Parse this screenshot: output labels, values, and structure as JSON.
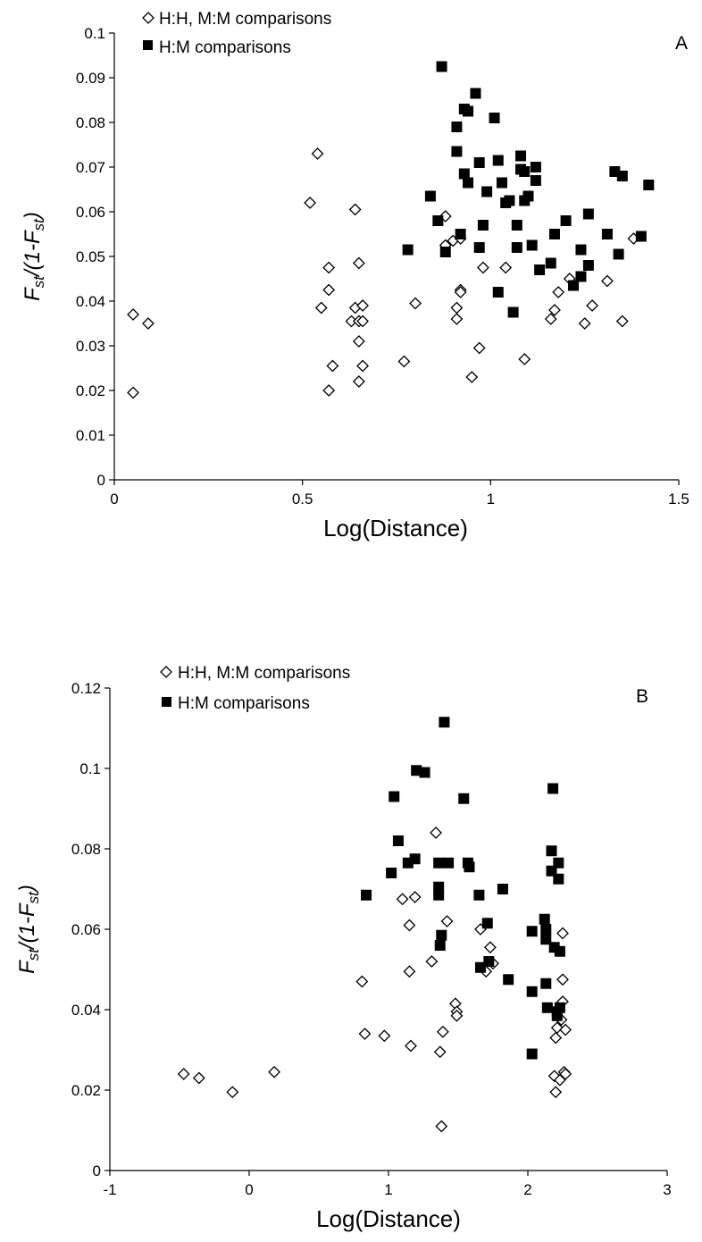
{
  "chart_data": [
    {
      "type": "scatter",
      "panel_label": "A",
      "xlabel": "Log(Distance)",
      "ylabel": "Fst/(1-Fst)",
      "xlim": [
        0,
        1.5
      ],
      "ylim": [
        0,
        0.1
      ],
      "xticks": [
        "0",
        "0.5",
        "1",
        "1.5"
      ],
      "yticks": [
        "0",
        "0.01",
        "0.02",
        "0.03",
        "0.04",
        "0.05",
        "0.06",
        "0.07",
        "0.08",
        "0.09",
        "0.1"
      ],
      "legend_position": "top-left",
      "series": [
        {
          "name": "H:H, M:M comparisons",
          "marker": "open-diamond",
          "points": [
            [
              0.05,
              0.037
            ],
            [
              0.09,
              0.035
            ],
            [
              0.05,
              0.0195
            ],
            [
              0.52,
              0.062
            ],
            [
              0.54,
              0.073
            ],
            [
              0.55,
              0.0385
            ],
            [
              0.57,
              0.0475
            ],
            [
              0.57,
              0.0425
            ],
            [
              0.57,
              0.02
            ],
            [
              0.58,
              0.0255
            ],
            [
              0.63,
              0.0355
            ],
            [
              0.64,
              0.0605
            ],
            [
              0.64,
              0.0385
            ],
            [
              0.65,
              0.0485
            ],
            [
              0.65,
              0.0355
            ],
            [
              0.65,
              0.031
            ],
            [
              0.65,
              0.022
            ],
            [
              0.66,
              0.039
            ],
            [
              0.66,
              0.0355
            ],
            [
              0.66,
              0.0255
            ],
            [
              0.77,
              0.0265
            ],
            [
              0.8,
              0.0395
            ],
            [
              0.88,
              0.059
            ],
            [
              0.88,
              0.0525
            ],
            [
              0.9,
              0.0535
            ],
            [
              0.91,
              0.0385
            ],
            [
              0.91,
              0.036
            ],
            [
              0.92,
              0.0425
            ],
            [
              0.92,
              0.042
            ],
            [
              0.92,
              0.054
            ],
            [
              0.95,
              0.023
            ],
            [
              0.97,
              0.0295
            ],
            [
              0.98,
              0.0475
            ],
            [
              1.04,
              0.0475
            ],
            [
              1.09,
              0.027
            ],
            [
              1.16,
              0.036
            ],
            [
              1.17,
              0.038
            ],
            [
              1.18,
              0.042
            ],
            [
              1.21,
              0.045
            ],
            [
              1.25,
              0.035
            ],
            [
              1.27,
              0.039
            ],
            [
              1.31,
              0.0445
            ],
            [
              1.35,
              0.0355
            ],
            [
              1.38,
              0.054
            ]
          ]
        },
        {
          "name": "H:M comparisons",
          "marker": "filled-square",
          "points": [
            [
              0.78,
              0.0515
            ],
            [
              0.84,
              0.0635
            ],
            [
              0.86,
              0.058
            ],
            [
              0.87,
              0.0925
            ],
            [
              0.88,
              0.051
            ],
            [
              0.91,
              0.079
            ],
            [
              0.91,
              0.0735
            ],
            [
              0.92,
              0.055
            ],
            [
              0.93,
              0.083
            ],
            [
              0.93,
              0.0685
            ],
            [
              0.94,
              0.0825
            ],
            [
              0.94,
              0.0665
            ],
            [
              0.96,
              0.0865
            ],
            [
              0.97,
              0.071
            ],
            [
              0.97,
              0.052
            ],
            [
              0.98,
              0.057
            ],
            [
              0.99,
              0.0645
            ],
            [
              1.01,
              0.081
            ],
            [
              1.02,
              0.0715
            ],
            [
              1.02,
              0.042
            ],
            [
              1.03,
              0.0665
            ],
            [
              1.04,
              0.062
            ],
            [
              1.05,
              0.0625
            ],
            [
              1.06,
              0.0375
            ],
            [
              1.07,
              0.057
            ],
            [
              1.07,
              0.052
            ],
            [
              1.08,
              0.0725
            ],
            [
              1.08,
              0.0695
            ],
            [
              1.09,
              0.069
            ],
            [
              1.09,
              0.0625
            ],
            [
              1.1,
              0.0635
            ],
            [
              1.11,
              0.0525
            ],
            [
              1.12,
              0.07
            ],
            [
              1.12,
              0.067
            ],
            [
              1.13,
              0.047
            ],
            [
              1.16,
              0.0485
            ],
            [
              1.17,
              0.055
            ],
            [
              1.2,
              0.058
            ],
            [
              1.22,
              0.0435
            ],
            [
              1.24,
              0.0515
            ],
            [
              1.24,
              0.0455
            ],
            [
              1.26,
              0.048
            ],
            [
              1.26,
              0.0595
            ],
            [
              1.31,
              0.055
            ],
            [
              1.33,
              0.069
            ],
            [
              1.34,
              0.0505
            ],
            [
              1.35,
              0.068
            ],
            [
              1.4,
              0.0545
            ],
            [
              1.42,
              0.066
            ]
          ]
        }
      ]
    },
    {
      "type": "scatter",
      "panel_label": "B",
      "xlabel": "Log(Distance)",
      "ylabel": "Fst/(1-Fst)",
      "xlim": [
        -1,
        3
      ],
      "ylim": [
        0,
        0.12
      ],
      "xticks": [
        "-1",
        "0",
        "1",
        "2",
        "3"
      ],
      "yticks": [
        "0",
        "0.02",
        "0.04",
        "0.06",
        "0.08",
        "0.1",
        "0.12"
      ],
      "legend_position": "top-left",
      "series": [
        {
          "name": "H:H, M:M comparisons",
          "marker": "open-diamond",
          "points": [
            [
              -0.47,
              0.024
            ],
            [
              -0.36,
              0.023
            ],
            [
              -0.12,
              0.0195
            ],
            [
              0.18,
              0.0245
            ],
            [
              0.81,
              0.047
            ],
            [
              0.83,
              0.034
            ],
            [
              0.97,
              0.0335
            ],
            [
              1.1,
              0.0675
            ],
            [
              1.15,
              0.061
            ],
            [
              1.15,
              0.0495
            ],
            [
              1.16,
              0.031
            ],
            [
              1.19,
              0.068
            ],
            [
              1.31,
              0.052
            ],
            [
              1.34,
              0.084
            ],
            [
              1.37,
              0.0295
            ],
            [
              1.38,
              0.011
            ],
            [
              1.39,
              0.0345
            ],
            [
              1.42,
              0.062
            ],
            [
              1.48,
              0.0415
            ],
            [
              1.49,
              0.0395
            ],
            [
              1.49,
              0.0385
            ],
            [
              1.66,
              0.06
            ],
            [
              1.7,
              0.0495
            ],
            [
              1.73,
              0.0555
            ],
            [
              1.75,
              0.0515
            ],
            [
              2.19,
              0.0235
            ],
            [
              2.2,
              0.033
            ],
            [
              2.2,
              0.0195
            ],
            [
              2.21,
              0.0355
            ],
            [
              2.23,
              0.0225
            ],
            [
              2.24,
              0.0375
            ],
            [
              2.25,
              0.059
            ],
            [
              2.25,
              0.0475
            ],
            [
              2.25,
              0.042
            ],
            [
              2.26,
              0.0245
            ],
            [
              2.27,
              0.035
            ],
            [
              2.27,
              0.024
            ]
          ]
        },
        {
          "name": "H:M comparisons",
          "marker": "filled-square",
          "points": [
            [
              0.84,
              0.0685
            ],
            [
              1.02,
              0.074
            ],
            [
              1.04,
              0.093
            ],
            [
              1.07,
              0.082
            ],
            [
              1.14,
              0.0765
            ],
            [
              1.19,
              0.0775
            ],
            [
              1.2,
              0.0995
            ],
            [
              1.26,
              0.099
            ],
            [
              1.36,
              0.0765
            ],
            [
              1.36,
              0.0705
            ],
            [
              1.36,
              0.0685
            ],
            [
              1.37,
              0.056
            ],
            [
              1.38,
              0.0585
            ],
            [
              1.4,
              0.1115
            ],
            [
              1.43,
              0.0765
            ],
            [
              1.54,
              0.0925
            ],
            [
              1.57,
              0.0765
            ],
            [
              1.58,
              0.0755
            ],
            [
              1.65,
              0.0685
            ],
            [
              1.66,
              0.0505
            ],
            [
              1.71,
              0.0615
            ],
            [
              1.72,
              0.052
            ],
            [
              1.82,
              0.07
            ],
            [
              1.86,
              0.0475
            ],
            [
              2.03,
              0.0595
            ],
            [
              2.03,
              0.0445
            ],
            [
              2.03,
              0.029
            ],
            [
              2.12,
              0.0625
            ],
            [
              2.13,
              0.06
            ],
            [
              2.13,
              0.0575
            ],
            [
              2.13,
              0.0465
            ],
            [
              2.14,
              0.0405
            ],
            [
              2.17,
              0.0745
            ],
            [
              2.17,
              0.0795
            ],
            [
              2.18,
              0.095
            ],
            [
              2.19,
              0.0555
            ],
            [
              2.21,
              0.0395
            ],
            [
              2.21,
              0.0385
            ],
            [
              2.22,
              0.0725
            ],
            [
              2.22,
              0.0765
            ],
            [
              2.23,
              0.0545
            ],
            [
              2.23,
              0.0405
            ]
          ]
        }
      ]
    }
  ]
}
